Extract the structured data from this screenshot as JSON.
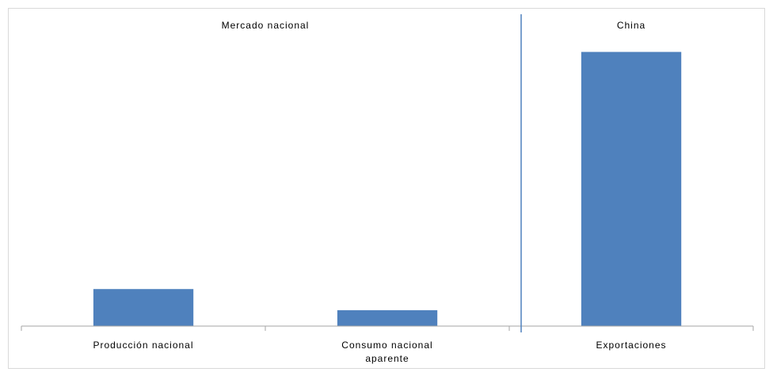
{
  "chart_data": {
    "type": "bar",
    "title": "",
    "xlabel": "",
    "ylabel": "",
    "groups": [
      {
        "label": "Mercado nacional",
        "categories": [
          "Producción nacional",
          "Consumo nacional aparente"
        ]
      },
      {
        "label": "China",
        "categories": [
          "Exportaciones"
        ]
      }
    ],
    "categories": [
      "Producción nacional",
      "Consumo nacional aparente",
      "Exportaciones"
    ],
    "category_lines": [
      [
        "Producción nacional"
      ],
      [
        "Consumo nacional",
        "aparente"
      ],
      [
        "Exportaciones"
      ]
    ],
    "values": [
      13.5,
      5.8,
      100
    ],
    "ylim": [
      0,
      110
    ],
    "y_axis_visible": false,
    "grid": false,
    "bar_color": "#4F81BD",
    "divider_color": "#4F81BD",
    "border_color": "#D9D9D9"
  }
}
